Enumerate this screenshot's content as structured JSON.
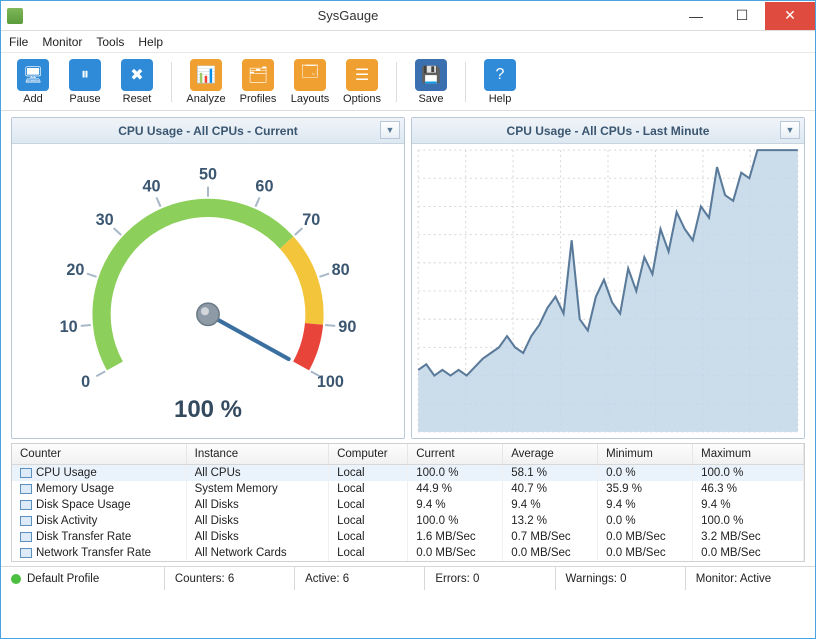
{
  "window": {
    "title": "SysGauge"
  },
  "menu": [
    "File",
    "Monitor",
    "Tools",
    "Help"
  ],
  "toolbar": [
    {
      "name": "add",
      "label": "Add",
      "color": "#2f8bd8",
      "glyph": "🖥"
    },
    {
      "name": "pause",
      "label": "Pause",
      "color": "#2f8bd8",
      "glyph": "⏸"
    },
    {
      "name": "reset",
      "label": "Reset",
      "color": "#2f8bd8",
      "glyph": "✖"
    },
    {
      "sep": true
    },
    {
      "name": "analyze",
      "label": "Analyze",
      "color": "#f0a030",
      "glyph": "📊"
    },
    {
      "name": "profiles",
      "label": "Profiles",
      "color": "#f0a030",
      "glyph": "🗂"
    },
    {
      "name": "layouts",
      "label": "Layouts",
      "color": "#f0a030",
      "glyph": "🗔"
    },
    {
      "name": "options",
      "label": "Options",
      "color": "#f0a030",
      "glyph": "☰"
    },
    {
      "sep": true
    },
    {
      "name": "save",
      "label": "Save",
      "color": "#3a6fb0",
      "glyph": "💾"
    },
    {
      "sep": true
    },
    {
      "name": "help",
      "label": "Help",
      "color": "#2f8bd8",
      "glyph": "?"
    }
  ],
  "gauge": {
    "title": "CPU Usage - All CPUs - Current",
    "value": 100,
    "value_text": "100 %",
    "min": 0,
    "max": 100,
    "ticks": [
      0,
      10,
      20,
      30,
      40,
      50,
      60,
      70,
      80,
      90,
      100
    ],
    "start_angle": 209,
    "end_angle": -29,
    "arc_radius": 105,
    "arc_width": 18,
    "label_radius": 138,
    "zones": [
      {
        "from": 0,
        "to": 70,
        "color": "#8ccf5a"
      },
      {
        "from": 70,
        "to": 90,
        "color": "#f2c53a"
      },
      {
        "from": 90,
        "to": 100,
        "color": "#e8443a"
      }
    ],
    "tick_color": "#a8b8c8",
    "label_color": "#3b5670",
    "needle_color": "#3a6fa0",
    "hub_color": "#8e9aa6"
  },
  "chart": {
    "title": "CPU Usage - All CPUs - Last Minute",
    "ymin": 0,
    "ymax": 100,
    "grid_color": "#d8d8d8",
    "line_color": "#5a7a9a",
    "fill_color": "#c2d6e8",
    "background": "#ffffff",
    "ygrid_count": 10,
    "xgrid_count": 8,
    "points": [
      22,
      24,
      20,
      22,
      20,
      22,
      20,
      23,
      26,
      28,
      30,
      34,
      30,
      28,
      34,
      38,
      44,
      48,
      42,
      68,
      40,
      36,
      48,
      54,
      46,
      42,
      58,
      50,
      62,
      56,
      72,
      64,
      78,
      72,
      68,
      80,
      76,
      94,
      84,
      82,
      92,
      90,
      100,
      100,
      100,
      100,
      100,
      100
    ]
  },
  "table": {
    "columns": [
      "Counter",
      "Instance",
      "Computer",
      "Current",
      "Average",
      "Minimum",
      "Maximum"
    ],
    "col_widths": [
      "22%",
      "18%",
      "10%",
      "12%",
      "12%",
      "12%",
      "14%"
    ],
    "rows": [
      [
        "CPU Usage",
        "All CPUs",
        "Local",
        "100.0 %",
        "58.1 %",
        "0.0 %",
        "100.0 %"
      ],
      [
        "Memory Usage",
        "System Memory",
        "Local",
        "44.9 %",
        "40.7 %",
        "35.9 %",
        "46.3 %"
      ],
      [
        "Disk Space Usage",
        "All Disks",
        "Local",
        "9.4 %",
        "9.4 %",
        "9.4 %",
        "9.4 %"
      ],
      [
        "Disk Activity",
        "All Disks",
        "Local",
        "100.0 %",
        "13.2 %",
        "0.0 %",
        "100.0 %"
      ],
      [
        "Disk Transfer Rate",
        "All Disks",
        "Local",
        "1.6 MB/Sec",
        "0.7 MB/Sec",
        "0.0 MB/Sec",
        "3.2 MB/Sec"
      ],
      [
        "Network Transfer Rate",
        "All Network Cards",
        "Local",
        "0.0 MB/Sec",
        "0.0 MB/Sec",
        "0.0 MB/Sec",
        "0.0 MB/Sec"
      ]
    ]
  },
  "status": {
    "profile": "Default Profile",
    "counters": "Counters: 6",
    "active": "Active: 6",
    "errors": "Errors: 0",
    "warnings": "Warnings: 0",
    "monitor": "Monitor: Active"
  }
}
